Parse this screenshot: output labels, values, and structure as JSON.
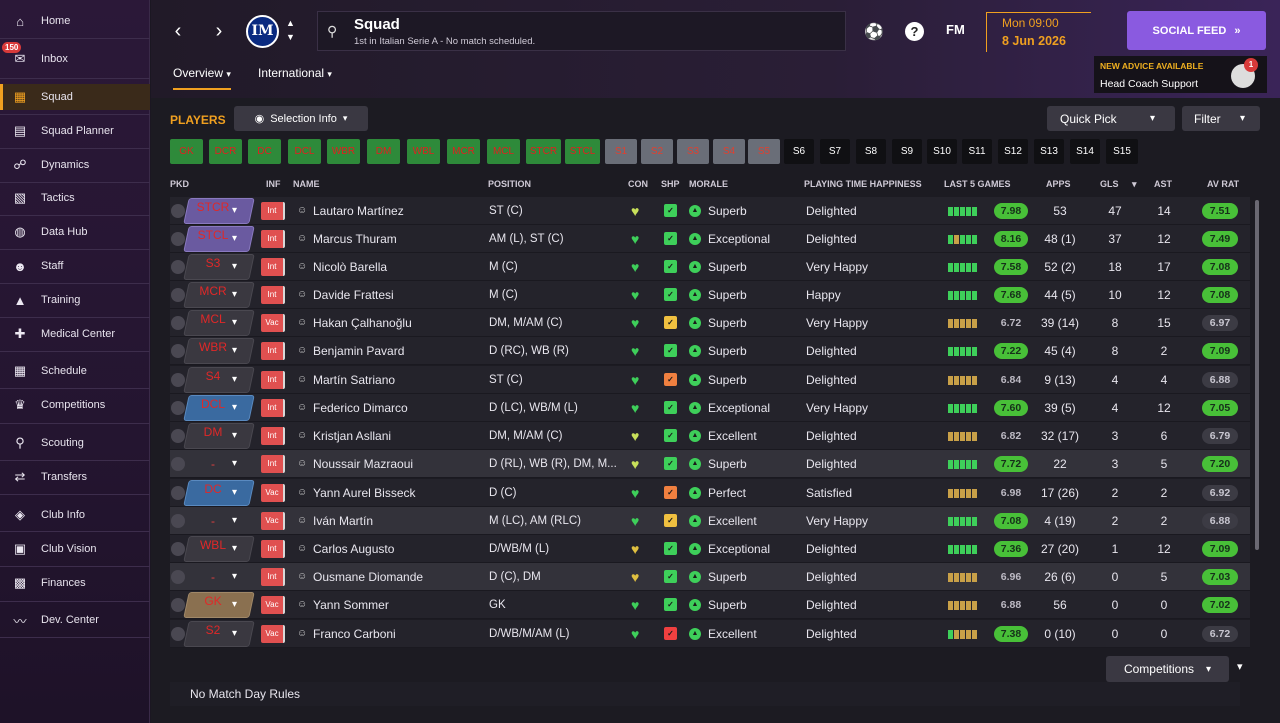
{
  "sidebar": {
    "inbox_badge": "150",
    "items": [
      {
        "label": "Home",
        "icon": "home-icon",
        "glyph": "⌂"
      },
      {
        "label": "Inbox",
        "icon": "inbox-icon",
        "glyph": "✉"
      },
      {
        "label": "Squad",
        "icon": "squad-icon",
        "glyph": "▦"
      },
      {
        "label": "Squad Planner",
        "icon": "squad-planner-icon",
        "glyph": "▤"
      },
      {
        "label": "Dynamics",
        "icon": "dynamics-icon",
        "glyph": "☍"
      },
      {
        "label": "Tactics",
        "icon": "tactics-icon",
        "glyph": "▧"
      },
      {
        "label": "Data Hub",
        "icon": "data-hub-icon",
        "glyph": "◍"
      },
      {
        "label": "Staff",
        "icon": "staff-icon",
        "glyph": "☻"
      },
      {
        "label": "Training",
        "icon": "training-icon",
        "glyph": "▲"
      },
      {
        "label": "Medical Center",
        "icon": "medical-center-icon",
        "glyph": "✚"
      },
      {
        "label": "Schedule",
        "icon": "schedule-icon",
        "glyph": "▦"
      },
      {
        "label": "Competitions",
        "icon": "competitions-icon",
        "glyph": "♛"
      },
      {
        "label": "Scouting",
        "icon": "scouting-icon",
        "glyph": "⚲"
      },
      {
        "label": "Transfers",
        "icon": "transfers-icon",
        "glyph": "⇄"
      },
      {
        "label": "Club Info",
        "icon": "club-info-icon",
        "glyph": "◈"
      },
      {
        "label": "Club Vision",
        "icon": "club-vision-icon",
        "glyph": "▣"
      },
      {
        "label": "Finances",
        "icon": "finances-icon",
        "glyph": "▩"
      },
      {
        "label": "Dev. Center",
        "icon": "dev-center-icon",
        "glyph": "〰"
      }
    ]
  },
  "header": {
    "title": "Squad",
    "subtitle": "1st in Italian Serie A - No match scheduled.",
    "club_logo": "IM",
    "fm": "FM",
    "help": "?",
    "time": "Mon 09:00",
    "date": "8 Jun 2026",
    "social_feed": "SOCIAL FEED",
    "advice_title": "NEW ADVICE AVAILABLE",
    "advice_sub": "Head Coach Support",
    "advice_badge": "1",
    "tabs": [
      "Overview",
      "International"
    ]
  },
  "toolbar": {
    "players": "PLAYERS",
    "selection_info": "Selection Info",
    "quick_pick": "Quick Pick",
    "filter": "Filter"
  },
  "positions": [
    {
      "label": "GK",
      "style": "g"
    },
    {
      "label": "DCR",
      "style": "g"
    },
    {
      "label": "DC",
      "style": "g"
    },
    {
      "label": "DCL",
      "style": "g"
    },
    {
      "label": "WBR",
      "style": "g"
    },
    {
      "label": "DM",
      "style": "g"
    },
    {
      "label": "WBL",
      "style": "g"
    },
    {
      "label": "MCR",
      "style": "g"
    },
    {
      "label": "MCL",
      "style": "g"
    },
    {
      "label": "STCR",
      "style": "g"
    },
    {
      "label": "STCL",
      "style": "g"
    },
    {
      "label": "S1",
      "style": "gr"
    },
    {
      "label": "S2",
      "style": "gr"
    },
    {
      "label": "S3",
      "style": "gr"
    },
    {
      "label": "S4",
      "style": "gr"
    },
    {
      "label": "S5",
      "style": "gr"
    },
    {
      "label": "S6",
      "style": "k"
    },
    {
      "label": "S7",
      "style": "k"
    },
    {
      "label": "S8",
      "style": "k"
    },
    {
      "label": "S9",
      "style": "k"
    },
    {
      "label": "S10",
      "style": "k"
    },
    {
      "label": "S11",
      "style": "k"
    },
    {
      "label": "S12",
      "style": "k"
    },
    {
      "label": "S13",
      "style": "k"
    },
    {
      "label": "S14",
      "style": "k"
    },
    {
      "label": "S15",
      "style": "k"
    }
  ],
  "columns": [
    "PKD",
    "INF",
    "NAME",
    "POSITION",
    "CON",
    "SHP",
    "MORALE",
    "PLAYING TIME HAPPINESS",
    "LAST 5 GAMES",
    "APPS",
    "GLS",
    "AST",
    "AV RAT"
  ],
  "players": [
    {
      "role": "STCR",
      "rbox": "purple",
      "inf": "Int",
      "name": "Lautaro Martínez",
      "pos": "ST (C)",
      "heart": "#c8e05a",
      "shp": "#3ecf5a",
      "morale": "Superb",
      "pth": "Delighted",
      "l5": [
        "#3ecf5a",
        "#3ecf5a",
        "#3ecf5a",
        "#3ecf5a",
        "#3ecf5a"
      ],
      "l5rat": "7.98",
      "l5green": true,
      "apps": "53",
      "gls": "47",
      "ast": "14",
      "avrat": "7.51",
      "avgreen": true
    },
    {
      "role": "STCL",
      "rbox": "purple",
      "inf": "Int",
      "name": "Marcus Thuram",
      "pos": "AM (L), ST (C)",
      "heart": "#3ecf5a",
      "shp": "#3ecf5a",
      "morale": "Exceptional",
      "pth": "Delighted",
      "l5": [
        "#3ecf5a",
        "#c8a048",
        "#3ecf5a",
        "#3ecf5a",
        "#3ecf5a"
      ],
      "l5rat": "8.16",
      "l5green": true,
      "apps": "48 (1)",
      "gls": "37",
      "ast": "12",
      "avrat": "7.49",
      "avgreen": true
    },
    {
      "role": "S3",
      "rbox": "empty",
      "inf": "Int",
      "name": "Nicolò Barella",
      "pos": "M (C)",
      "heart": "#3ecf5a",
      "shp": "#3ecf5a",
      "morale": "Superb",
      "pth": "Very Happy",
      "l5": [
        "#3ecf5a",
        "#3ecf5a",
        "#3ecf5a",
        "#3ecf5a",
        "#3ecf5a"
      ],
      "l5rat": "7.58",
      "l5green": true,
      "apps": "52 (2)",
      "gls": "18",
      "ast": "17",
      "avrat": "7.08",
      "avgreen": true
    },
    {
      "role": "MCR",
      "rbox": "empty",
      "inf": "Int",
      "name": "Davide Frattesi",
      "pos": "M (C)",
      "heart": "#3ecf5a",
      "shp": "#3ecf5a",
      "morale": "Superb",
      "pth": "Happy",
      "l5": [
        "#3ecf5a",
        "#3ecf5a",
        "#3ecf5a",
        "#3ecf5a",
        "#3ecf5a"
      ],
      "l5rat": "7.68",
      "l5green": true,
      "apps": "44 (5)",
      "gls": "10",
      "ast": "12",
      "avrat": "7.08",
      "avgreen": true
    },
    {
      "role": "MCL",
      "rbox": "empty",
      "inf": "Vac",
      "name": "Hakan Çalhanoğlu",
      "pos": "DM, M/AM (C)",
      "heart": "#3ecf5a",
      "shp": "#f0c040",
      "morale": "Superb",
      "pth": "Very Happy",
      "l5": [
        "#c8a048",
        "#c8a048",
        "#c8a048",
        "#c8a048",
        "#c8a048"
      ],
      "l5rat": "6.72",
      "l5green": false,
      "apps": "39 (14)",
      "gls": "8",
      "ast": "15",
      "avrat": "6.97",
      "avgreen": false
    },
    {
      "role": "WBR",
      "rbox": "empty",
      "inf": "Int",
      "name": "Benjamin Pavard",
      "pos": "D (RC), WB (R)",
      "heart": "#3ecf5a",
      "shp": "#3ecf5a",
      "morale": "Superb",
      "pth": "Delighted",
      "l5": [
        "#3ecf5a",
        "#3ecf5a",
        "#3ecf5a",
        "#3ecf5a",
        "#3ecf5a"
      ],
      "l5rat": "7.22",
      "l5green": true,
      "apps": "45 (4)",
      "gls": "8",
      "ast": "2",
      "avrat": "7.09",
      "avgreen": true
    },
    {
      "role": "S4",
      "rbox": "empty",
      "inf": "Int",
      "name": "Martín Satriano",
      "pos": "ST (C)",
      "heart": "#3ecf5a",
      "shp": "#f08040",
      "morale": "Superb",
      "pth": "Delighted",
      "l5": [
        "#c8a048",
        "#c8a048",
        "#c8a048",
        "#c8a048",
        "#c8a048"
      ],
      "l5rat": "6.84",
      "l5green": false,
      "apps": "9 (13)",
      "gls": "4",
      "ast": "4",
      "avrat": "6.88",
      "avgreen": false
    },
    {
      "role": "DCL",
      "rbox": "blue",
      "inf": "Int",
      "name": "Federico Dimarco",
      "pos": "D (LC), WB/M (L)",
      "heart": "#3ecf5a",
      "shp": "#3ecf5a",
      "morale": "Exceptional",
      "pth": "Very Happy",
      "l5": [
        "#3ecf5a",
        "#3ecf5a",
        "#3ecf5a",
        "#3ecf5a",
        "#3ecf5a"
      ],
      "l5rat": "7.60",
      "l5green": true,
      "apps": "39 (5)",
      "gls": "4",
      "ast": "12",
      "avrat": "7.05",
      "avgreen": true
    },
    {
      "role": "DM",
      "rbox": "empty",
      "inf": "Int",
      "name": "Kristjan Asllani",
      "pos": "DM, M/AM (C)",
      "heart": "#c8e05a",
      "shp": "#3ecf5a",
      "morale": "Excellent",
      "pth": "Delighted",
      "l5": [
        "#c8a048",
        "#c8a048",
        "#c8a048",
        "#c8a048",
        "#c8a048"
      ],
      "l5rat": "6.82",
      "l5green": false,
      "apps": "32 (17)",
      "gls": "3",
      "ast": "6",
      "avrat": "6.79",
      "avgreen": false
    },
    {
      "role": "-",
      "rbox": "none",
      "inf": "Int",
      "name": "Noussair Mazraoui",
      "pos": "D (RL), WB (R), DM, M...",
      "heart": "#c8e05a",
      "shp": "#3ecf5a",
      "morale": "Superb",
      "pth": "Delighted",
      "l5": [
        "#3ecf5a",
        "#3ecf5a",
        "#3ecf5a",
        "#3ecf5a",
        "#3ecf5a"
      ],
      "l5rat": "7.72",
      "l5green": true,
      "apps": "22",
      "gls": "3",
      "ast": "5",
      "avrat": "7.20",
      "avgreen": true
    },
    {
      "role": "DC",
      "rbox": "blue",
      "inf": "Vac",
      "name": "Yann Aurel Bisseck",
      "pos": "D (C)",
      "heart": "#3ecf5a",
      "shp": "#f08040",
      "morale": "Perfect",
      "pth": "Satisfied",
      "l5": [
        "#c8a048",
        "#c8a048",
        "#c8a048",
        "#c8a048",
        "#c8a048"
      ],
      "l5rat": "6.98",
      "l5green": false,
      "apps": "17 (26)",
      "gls": "2",
      "ast": "2",
      "avrat": "6.92",
      "avgreen": false
    },
    {
      "role": "-",
      "rbox": "none",
      "inf": "Vac",
      "name": "Iván Martín",
      "pos": "M (LC), AM (RLC)",
      "heart": "#3ecf5a",
      "shp": "#f0c040",
      "morale": "Excellent",
      "pth": "Very Happy",
      "l5": [
        "#3ecf5a",
        "#3ecf5a",
        "#3ecf5a",
        "#3ecf5a",
        "#3ecf5a"
      ],
      "l5rat": "7.08",
      "l5green": true,
      "apps": "4 (19)",
      "gls": "2",
      "ast": "2",
      "avrat": "6.88",
      "avgreen": false
    },
    {
      "role": "WBL",
      "rbox": "empty",
      "inf": "Int",
      "name": "Carlos Augusto",
      "pos": "D/WB/M (L)",
      "heart": "#e0c040",
      "shp": "#3ecf5a",
      "morale": "Exceptional",
      "pth": "Delighted",
      "l5": [
        "#3ecf5a",
        "#3ecf5a",
        "#3ecf5a",
        "#3ecf5a",
        "#3ecf5a"
      ],
      "l5rat": "7.36",
      "l5green": true,
      "apps": "27 (20)",
      "gls": "1",
      "ast": "12",
      "avrat": "7.09",
      "avgreen": true
    },
    {
      "role": "-",
      "rbox": "none",
      "inf": "Int",
      "name": "Ousmane Diomande",
      "pos": "D (C), DM",
      "heart": "#e0c040",
      "shp": "#3ecf5a",
      "morale": "Superb",
      "pth": "Delighted",
      "l5": [
        "#c8a048",
        "#c8a048",
        "#c8a048",
        "#c8a048",
        "#c8a048"
      ],
      "l5rat": "6.96",
      "l5green": false,
      "apps": "26 (6)",
      "gls": "0",
      "ast": "5",
      "avrat": "7.03",
      "avgreen": true
    },
    {
      "role": "GK",
      "rbox": "gold",
      "inf": "Vac",
      "name": "Yann Sommer",
      "pos": "GK",
      "heart": "#3ecf5a",
      "shp": "#3ecf5a",
      "morale": "Superb",
      "pth": "Delighted",
      "l5": [
        "#c8a048",
        "#c8a048",
        "#c8a048",
        "#c8a048",
        "#c8a048"
      ],
      "l5rat": "6.88",
      "l5green": false,
      "apps": "56",
      "gls": "0",
      "ast": "0",
      "avrat": "7.02",
      "avgreen": true
    },
    {
      "role": "S2",
      "rbox": "empty",
      "inf": "Vac",
      "name": "Franco Carboni",
      "pos": "D/WB/M/AM (L)",
      "heart": "#3ecf5a",
      "shp": "#f04040",
      "morale": "Excellent",
      "pth": "Delighted",
      "l5": [
        "#3ecf5a",
        "#c8a048",
        "#c8a048",
        "#c8a048",
        "#c8a048"
      ],
      "l5rat": "7.38",
      "l5green": true,
      "apps": "0 (10)",
      "gls": "0",
      "ast": "0",
      "avrat": "6.72",
      "avgreen": false
    }
  ],
  "footer": {
    "competitions": "Competitions",
    "match_day_rules": "No Match Day Rules"
  }
}
